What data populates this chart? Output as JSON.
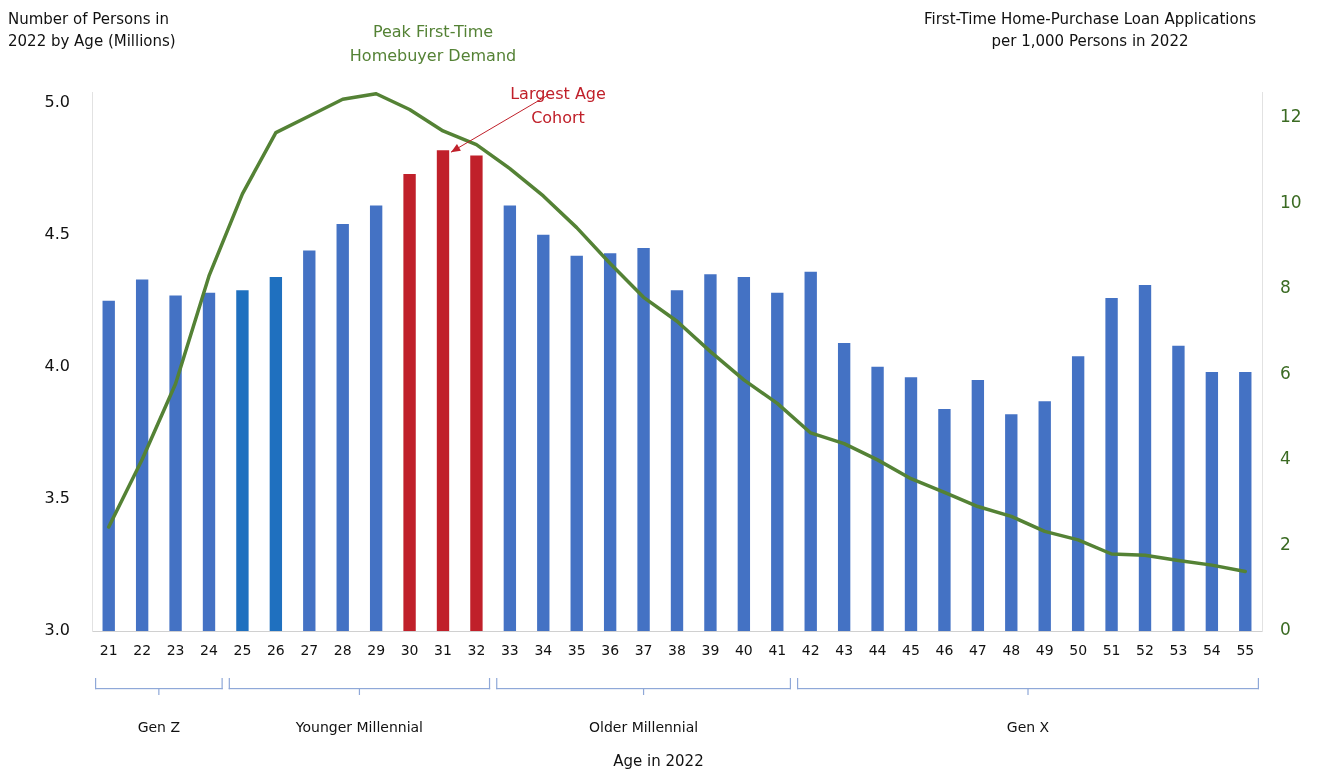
{
  "chart_data": {
    "type": "bar",
    "ylabel": "Number of Persons in 2022 by Age (Millions)",
    "y2label": "First-Time Home-Purchase Loan Applications per 1,000 Persons in 2022",
    "categories": [
      "21",
      "22",
      "23",
      "24",
      "25",
      "26",
      "27",
      "28",
      "29",
      "30",
      "31",
      "32",
      "33",
      "34",
      "35",
      "36",
      "37",
      "38",
      "39",
      "40",
      "41",
      "42",
      "43",
      "44",
      "45",
      "46",
      "47",
      "48",
      "49",
      "50",
      "51",
      "52",
      "53",
      "54",
      "55"
    ],
    "series": [
      {
        "colors": [
          "#4472c4",
          "#4472c4",
          "#4472c4",
          "#4472c4",
          "#1f70bf",
          "#1f70bf",
          "#4472c4",
          "#4472c4",
          "#4472c4",
          "#c0202a",
          "#c0202a",
          "#c0202a",
          "#4472c4",
          "#4472c4",
          "#4472c4",
          "#4472c4",
          "#4472c4",
          "#4472c4",
          "#4472c4",
          "#4472c4",
          "#4472c4",
          "#4472c4",
          "#4472c4",
          "#4472c4",
          "#4472c4",
          "#4472c4",
          "#4472c4",
          "#4472c4",
          "#4472c4",
          "#4472c4",
          "#4472c4",
          "#4472c4",
          "#4472c4",
          "#4472c4",
          "#4472c4"
        ],
        "values": [
          4.25,
          4.33,
          4.27,
          4.28,
          4.29,
          4.34,
          4.44,
          4.54,
          4.61,
          4.73,
          4.82,
          4.8,
          4.61,
          4.5,
          4.42,
          4.43,
          4.45,
          4.29,
          4.35,
          4.34,
          4.28,
          4.36,
          4.09,
          4.0,
          3.96,
          3.84,
          3.95,
          3.82,
          3.87,
          4.04,
          4.26,
          4.31,
          4.08,
          3.98,
          3.98
        ]
      },
      {
        "type": "line",
        "axis": "y2",
        "color": "#548235",
        "values": [
          2.43,
          4.01,
          5.78,
          8.3,
          10.22,
          11.65,
          12.04,
          12.43,
          12.56,
          12.19,
          11.69,
          11.37,
          10.81,
          10.17,
          9.43,
          8.59,
          7.8,
          7.24,
          6.53,
          5.87,
          5.32,
          4.63,
          4.38,
          4.0,
          3.56,
          3.24,
          2.91,
          2.68,
          2.33,
          2.13,
          1.8,
          1.77,
          1.65,
          1.54,
          1.39
        ]
      }
    ],
    "ylim": [
      3,
      5.04
    ],
    "yticks": [
      {
        "value": 3,
        "label": "3.0"
      },
      {
        "value": 3.5,
        "label": "3.5"
      },
      {
        "value": 4,
        "label": "4.0"
      },
      {
        "value": 4.5,
        "label": "4.5"
      },
      {
        "value": 5,
        "label": "5.0"
      }
    ],
    "y2lim": [
      0,
      12.6
    ],
    "y2ticks": [
      0,
      2,
      4,
      6,
      8,
      10,
      12
    ],
    "grid": false,
    "legend": false,
    "marker": "none",
    "line_style": "solid",
    "annotations": [
      "Peak First-Time Homebuyer Demand",
      {
        "text": "Largest Age Cohort",
        "x": "31",
        "y": 4.82
      },
      "Gen Z",
      "Younger Millennial",
      "Older Millennial",
      "Gen X",
      "Age in 2022"
    ]
  }
}
